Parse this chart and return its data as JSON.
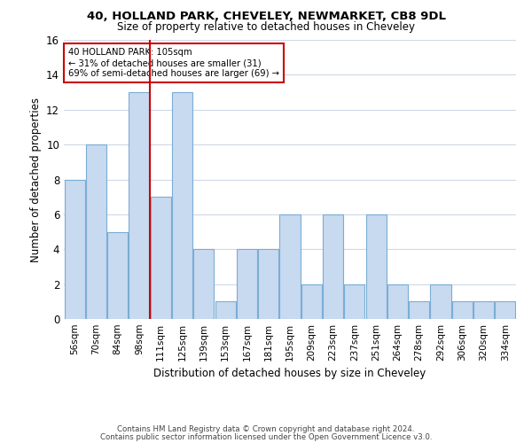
{
  "title1": "40, HOLLAND PARK, CHEVELEY, NEWMARKET, CB8 9DL",
  "title2": "Size of property relative to detached houses in Cheveley",
  "xlabel": "Distribution of detached houses by size in Cheveley",
  "ylabel": "Number of detached properties",
  "bin_labels": [
    "56sqm",
    "70sqm",
    "84sqm",
    "98sqm",
    "111sqm",
    "125sqm",
    "139sqm",
    "153sqm",
    "167sqm",
    "181sqm",
    "195sqm",
    "209sqm",
    "223sqm",
    "237sqm",
    "251sqm",
    "264sqm",
    "278sqm",
    "292sqm",
    "306sqm",
    "320sqm",
    "334sqm"
  ],
  "bar_heights": [
    8,
    10,
    5,
    13,
    7,
    13,
    4,
    1,
    4,
    4,
    6,
    2,
    6,
    2,
    6,
    2,
    1,
    2,
    1,
    1,
    1
  ],
  "bar_color": "#c8daf0",
  "bar_edge_color": "#7aadd4",
  "vline_x_index": 3.5,
  "vline_color": "#cc0000",
  "annotation_box_text": "40 HOLLAND PARK: 105sqm\n← 31% of detached houses are smaller (31)\n69% of semi-detached houses are larger (69) →",
  "annotation_box_edge_color": "#cc0000",
  "ylim": [
    0,
    16
  ],
  "yticks": [
    0,
    2,
    4,
    6,
    8,
    10,
    12,
    14,
    16
  ],
  "footer_line1": "Contains HM Land Registry data © Crown copyright and database right 2024.",
  "footer_line2": "Contains public sector information licensed under the Open Government Licence v3.0.",
  "background_color": "#ffffff",
  "grid_color": "#d0d8e8"
}
